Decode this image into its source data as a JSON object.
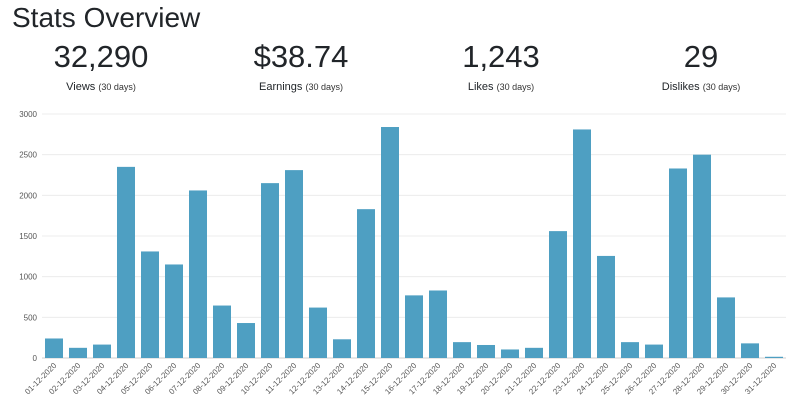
{
  "page": {
    "title": "Stats Overview"
  },
  "stats": [
    {
      "value": "32,290",
      "label": "Views",
      "period": "(30 days)"
    },
    {
      "value": "$38.74",
      "label": "Earnings",
      "period": "(30 days)"
    },
    {
      "value": "1,243",
      "label": "Likes",
      "period": "(30 days)"
    },
    {
      "value": "29",
      "label": "Dislikes",
      "period": "(30 days)"
    }
  ],
  "chart_data": {
    "type": "bar",
    "title": "",
    "xlabel": "",
    "ylabel": "",
    "ylim": [
      0,
      3000
    ],
    "yticks": [
      0,
      500,
      1000,
      1500,
      2000,
      2500,
      3000
    ],
    "grid": true,
    "bar_color": "#4e9fc2",
    "categories": [
      "01-12-2020",
      "02-12-2020",
      "03-12-2020",
      "04-12-2020",
      "05-12-2020",
      "06-12-2020",
      "07-12-2020",
      "08-12-2020",
      "09-12-2020",
      "10-12-2020",
      "11-12-2020",
      "12-12-2020",
      "13-12-2020",
      "14-12-2020",
      "15-12-2020",
      "16-12-2020",
      "17-12-2020",
      "18-12-2020",
      "19-12-2020",
      "20-12-2020",
      "21-12-2020",
      "22-12-2020",
      "23-12-2020",
      "24-12-2020",
      "25-12-2020",
      "26-12-2020",
      "27-12-2020",
      "28-12-2020",
      "29-12-2020",
      "30-12-2020",
      "31-12-2020"
    ],
    "values": [
      240,
      125,
      165,
      2350,
      1310,
      1150,
      2060,
      645,
      430,
      2150,
      2310,
      620,
      230,
      1830,
      2840,
      770,
      830,
      195,
      160,
      105,
      125,
      1560,
      2810,
      1255,
      195,
      165,
      2330,
      2500,
      745,
      180,
      15
    ]
  }
}
